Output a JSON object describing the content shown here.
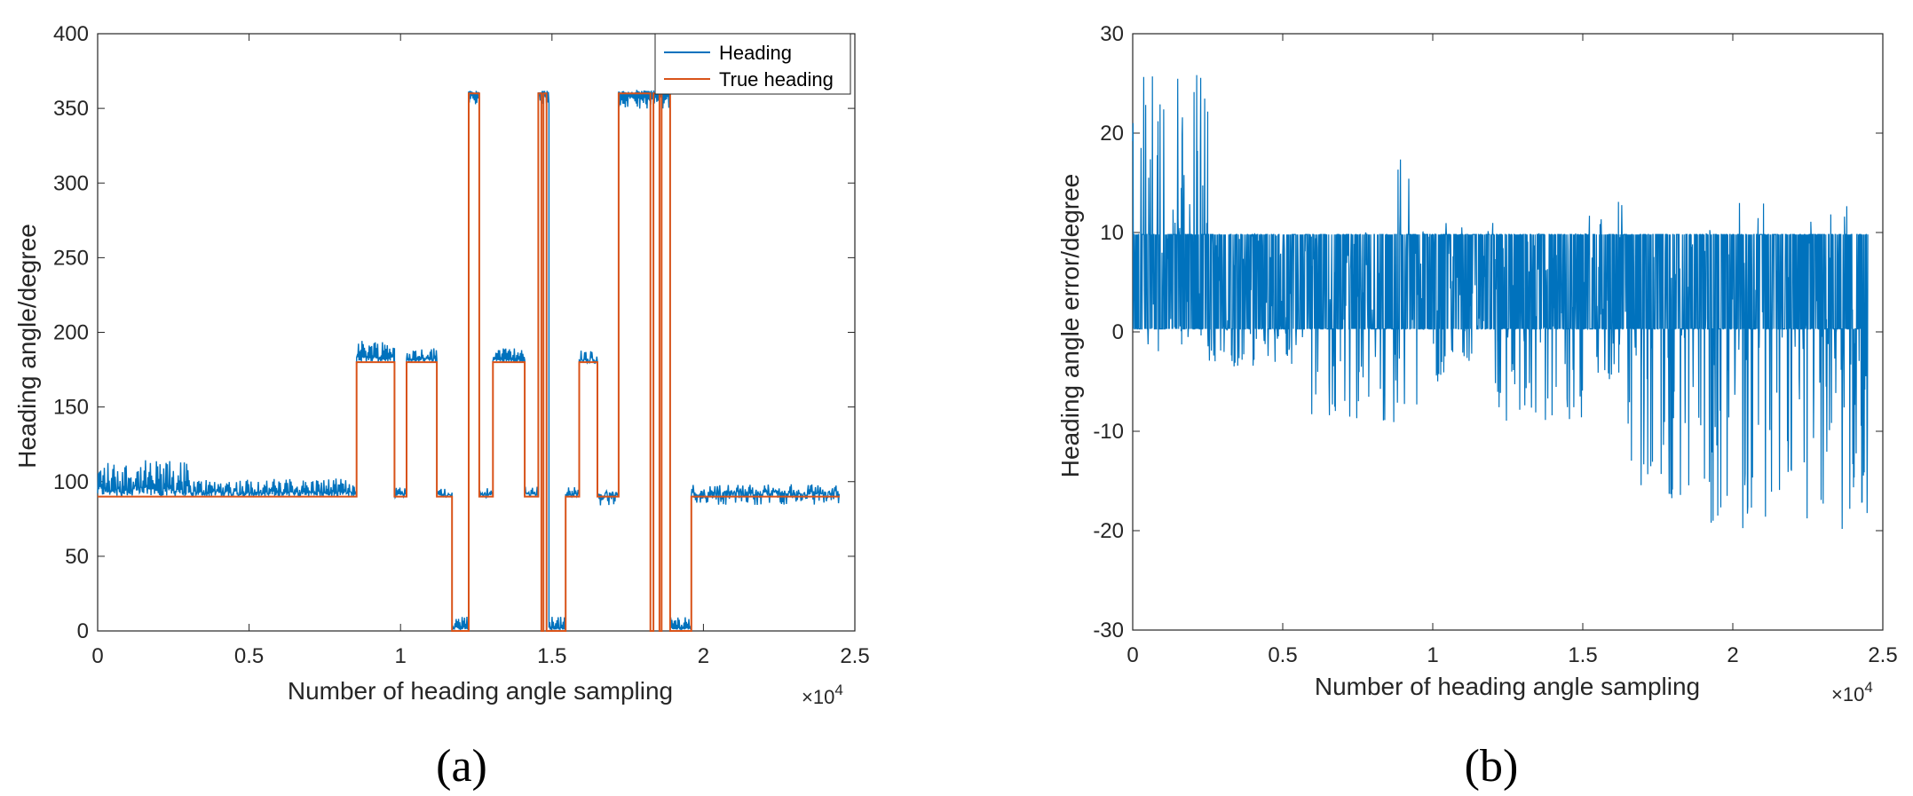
{
  "colors": {
    "heading": "#0072BD",
    "true_heading": "#D95319",
    "axis": "#262626"
  },
  "chart_data": [
    {
      "type": "line",
      "panel_label": "(a)",
      "xlabel": "Number of heading angle sampling",
      "ylabel": "Heading angle/degree",
      "x_multiplier_base": "×10",
      "x_multiplier_exp": "4",
      "xlim": [
        0,
        2.5
      ],
      "ylim": [
        0,
        400
      ],
      "xticks": [
        "0",
        "0.5",
        "1",
        "1.5",
        "2",
        "2.5"
      ],
      "xtick_values": [
        0,
        0.5,
        1,
        1.5,
        2,
        2.5
      ],
      "yticks": [
        "0",
        "50",
        "100",
        "150",
        "200",
        "250",
        "300",
        "350",
        "400"
      ],
      "ytick_values": [
        0,
        50,
        100,
        150,
        200,
        250,
        300,
        350,
        400
      ],
      "legend": {
        "position": "top-right",
        "entries": [
          "Heading",
          "True heading"
        ]
      },
      "series": [
        {
          "name": "True heading",
          "color": "#D95319",
          "kind": "step",
          "segments": [
            [
              0,
              0.855,
              90
            ],
            [
              0.855,
              0.98,
              180
            ],
            [
              0.98,
              1.02,
              90
            ],
            [
              1.02,
              1.12,
              180
            ],
            [
              1.12,
              1.17,
              90
            ],
            [
              1.17,
              1.225,
              0
            ],
            [
              1.225,
              1.26,
              360
            ],
            [
              1.26,
              1.305,
              90
            ],
            [
              1.305,
              1.41,
              180
            ],
            [
              1.41,
              1.455,
              90
            ],
            [
              1.455,
              1.465,
              360
            ],
            [
              1.465,
              1.472,
              0
            ],
            [
              1.472,
              1.482,
              360
            ],
            [
              1.482,
              1.49,
              0
            ],
            [
              1.49,
              1.545,
              0
            ],
            [
              1.545,
              1.59,
              90
            ],
            [
              1.59,
              1.65,
              180
            ],
            [
              1.65,
              1.72,
              90
            ],
            [
              1.72,
              1.825,
              360
            ],
            [
              1.825,
              1.835,
              0
            ],
            [
              1.835,
              1.855,
              360
            ],
            [
              1.855,
              1.862,
              0
            ],
            [
              1.862,
              1.89,
              360
            ],
            [
              1.89,
              1.96,
              0
            ],
            [
              1.96,
              2.45,
              90
            ]
          ]
        },
        {
          "name": "Heading",
          "color": "#0072BD",
          "kind": "noisy",
          "segments": [
            [
              0,
              0.3,
              90,
              100,
              24
            ],
            [
              0.3,
              0.855,
              90,
              95,
              12
            ],
            [
              0.855,
              0.98,
              180,
              188,
              12
            ],
            [
              0.98,
              1.02,
              90,
              92,
              8
            ],
            [
              1.02,
              1.12,
              180,
              185,
              8
            ],
            [
              1.12,
              1.17,
              90,
              92,
              6
            ],
            [
              1.17,
              1.225,
              0,
              5,
              8
            ],
            [
              1.225,
              1.26,
              360,
              355,
              6
            ],
            [
              1.26,
              1.305,
              90,
              92,
              8
            ],
            [
              1.305,
              1.41,
              180,
              185,
              8
            ],
            [
              1.41,
              1.455,
              90,
              92,
              8
            ],
            [
              1.455,
              1.49,
              360,
              355,
              6
            ],
            [
              1.49,
              1.545,
              0,
              5,
              8
            ],
            [
              1.545,
              1.59,
              90,
              92,
              8
            ],
            [
              1.59,
              1.65,
              180,
              183,
              10
            ],
            [
              1.65,
              1.72,
              90,
              88,
              10
            ],
            [
              1.72,
              1.89,
              360,
              353,
              8
            ],
            [
              1.89,
              1.96,
              0,
              5,
              8
            ],
            [
              1.96,
              2.45,
              90,
              90,
              14
            ]
          ]
        }
      ]
    },
    {
      "type": "line",
      "panel_label": "(b)",
      "xlabel": "Number of heading angle sampling",
      "ylabel": "Heading angle error/degree",
      "x_multiplier_base": "×10",
      "x_multiplier_exp": "4",
      "xlim": [
        0,
        2.5
      ],
      "ylim": [
        -30,
        30
      ],
      "xticks": [
        "0",
        "0.5",
        "1",
        "1.5",
        "2",
        "2.5"
      ],
      "xtick_values": [
        0,
        0.5,
        1,
        1.5,
        2,
        2.5
      ],
      "yticks": [
        "-30",
        "-20",
        "-10",
        "0",
        "10",
        "20",
        "30"
      ],
      "ytick_values": [
        -30,
        -20,
        -10,
        0,
        10,
        20,
        30
      ],
      "series": [
        {
          "color": "#0072BD",
          "kind": "error",
          "segments": [
            [
              0,
              0.25,
              -2,
              26
            ],
            [
              0.25,
              0.55,
              -4,
              10
            ],
            [
              0.55,
              0.85,
              -9,
              10
            ],
            [
              0.85,
              0.95,
              -10,
              20
            ],
            [
              0.95,
              1.2,
              -5,
              11
            ],
            [
              1.2,
              1.5,
              -10,
              10
            ],
            [
              1.5,
              1.65,
              -5,
              14
            ],
            [
              1.65,
              1.9,
              -17,
              10
            ],
            [
              1.9,
              2.45,
              -20,
              13
            ]
          ]
        }
      ]
    }
  ]
}
